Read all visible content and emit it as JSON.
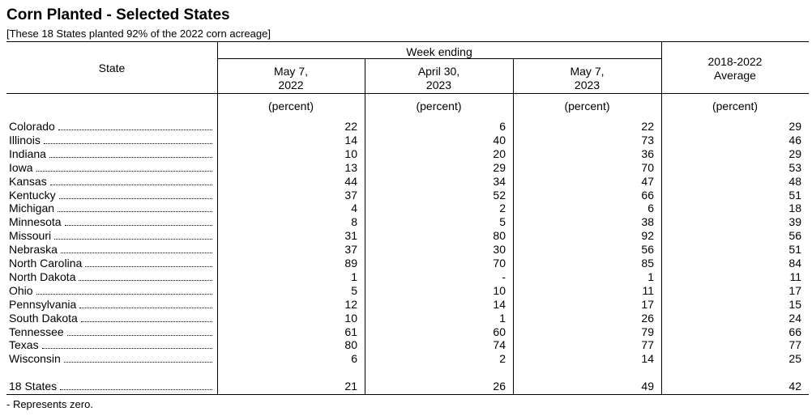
{
  "title": "Corn Planted - Selected States",
  "subtitle": "[These 18 States planted 92% of the 2022 corn acreage]",
  "table": {
    "header": {
      "state": "State",
      "group": "Week ending",
      "columns": [
        [
          "May 7,",
          "2022"
        ],
        [
          "April 30,",
          "2023"
        ],
        [
          "May 7,",
          "2023"
        ],
        [
          "2018-2022",
          "Average"
        ]
      ]
    },
    "units": [
      "(percent)",
      "(percent)",
      "(percent)",
      "(percent)"
    ],
    "rows": [
      [
        "Colorado",
        22,
        6,
        22,
        29
      ],
      [
        "Illinois",
        14,
        40,
        73,
        46
      ],
      [
        "Indiana",
        10,
        20,
        36,
        29
      ],
      [
        "Iowa",
        13,
        29,
        70,
        53
      ],
      [
        "Kansas",
        44,
        34,
        47,
        48
      ],
      [
        "Kentucky",
        37,
        52,
        66,
        51
      ],
      [
        "Michigan",
        4,
        2,
        6,
        18
      ],
      [
        "Minnesota",
        8,
        5,
        38,
        39
      ],
      [
        "Missouri",
        31,
        80,
        92,
        56
      ],
      [
        "Nebraska",
        37,
        30,
        56,
        51
      ],
      [
        "North Carolina",
        89,
        70,
        85,
        84
      ],
      [
        "North Dakota",
        1,
        "-",
        1,
        11
      ],
      [
        "Ohio",
        5,
        10,
        11,
        17
      ],
      [
        "Pennsylvania",
        12,
        14,
        17,
        15
      ],
      [
        "South Dakota",
        10,
        1,
        26,
        24
      ],
      [
        "Tennessee",
        61,
        60,
        79,
        66
      ],
      [
        "Texas",
        80,
        74,
        77,
        77
      ],
      [
        "Wisconsin",
        6,
        2,
        14,
        25
      ]
    ],
    "total": [
      "18 States",
      21,
      26,
      49,
      42
    ]
  },
  "footnote": "- Represents zero."
}
